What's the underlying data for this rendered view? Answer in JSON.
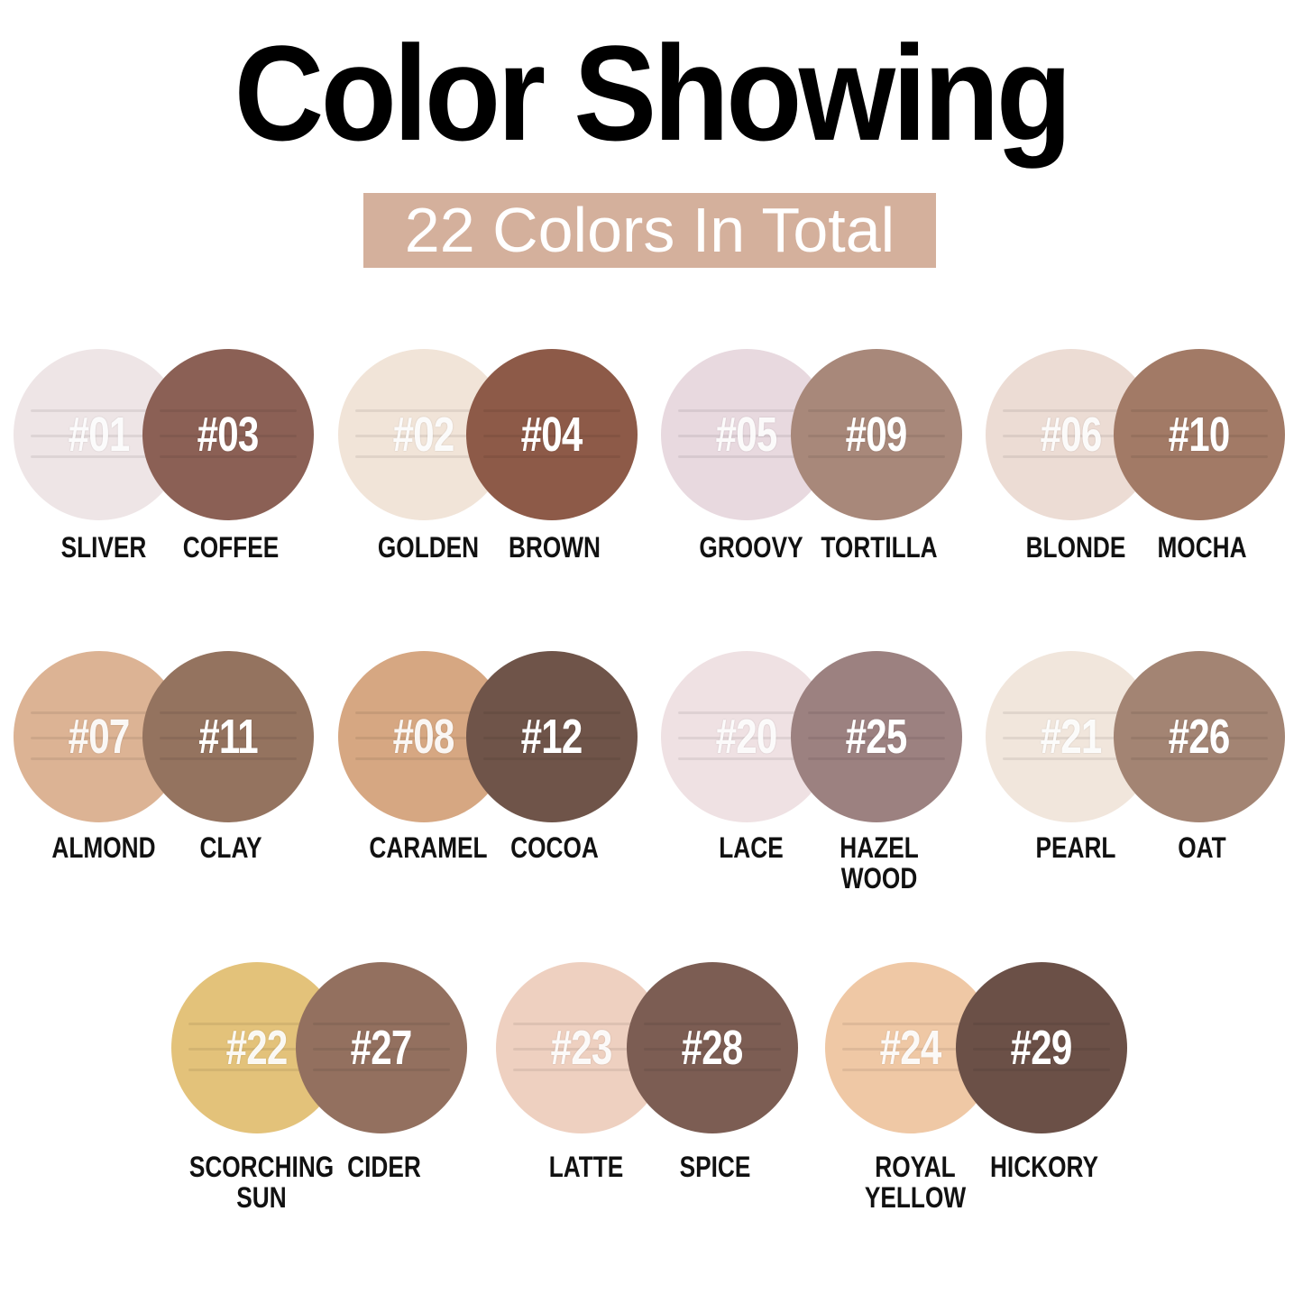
{
  "title": "Color Showing",
  "subtitle": "22 Colors In Total",
  "subtitle_bg": "#d4b09c",
  "shades": [
    {
      "number": "#01",
      "name": "SLIVER",
      "color": "#eee5e6"
    },
    {
      "number": "#03",
      "name": "COFFEE",
      "color": "#8b6055"
    },
    {
      "number": "#02",
      "name": "GOLDEN",
      "color": "#f1e4d8"
    },
    {
      "number": "#04",
      "name": "BROWN",
      "color": "#8d5a48"
    },
    {
      "number": "#05",
      "name": "GROOVY",
      "color": "#e8d9df"
    },
    {
      "number": "#09",
      "name": "TORTILLA",
      "color": "#a8887a"
    },
    {
      "number": "#06",
      "name": "BLONDE",
      "color": "#ecdcd4"
    },
    {
      "number": "#10",
      "name": "MOCHA",
      "color": "#a27a66"
    },
    {
      "number": "#07",
      "name": "ALMOND",
      "color": "#dcb394"
    },
    {
      "number": "#11",
      "name": "CLAY",
      "color": "#94735f"
    },
    {
      "number": "#08",
      "name": "CARAMEL",
      "color": "#d6a782"
    },
    {
      "number": "#12",
      "name": "COCOA",
      "color": "#6f5449"
    },
    {
      "number": "#20",
      "name": "LACE",
      "color": "#efe1e3"
    },
    {
      "number": "#25",
      "name": "HAZEL\nWOOD",
      "color": "#9c8180"
    },
    {
      "number": "#21",
      "name": "PEARL",
      "color": "#f1e6dc"
    },
    {
      "number": "#26",
      "name": "OAT",
      "color": "#a38473"
    },
    {
      "number": "#22",
      "name": "SCORCHING\nSUN",
      "color": "#e3c27a"
    },
    {
      "number": "#27",
      "name": "CIDER",
      "color": "#93705f"
    },
    {
      "number": "#23",
      "name": "LATTE",
      "color": "#eed0c0"
    },
    {
      "number": "#28",
      "name": "SPICE",
      "color": "#7c5d53"
    },
    {
      "number": "#24",
      "name": "ROYAL\nYELLOW",
      "color": "#efc8a5"
    },
    {
      "number": "#29",
      "name": "HICKORY",
      "color": "#6b5047"
    }
  ]
}
